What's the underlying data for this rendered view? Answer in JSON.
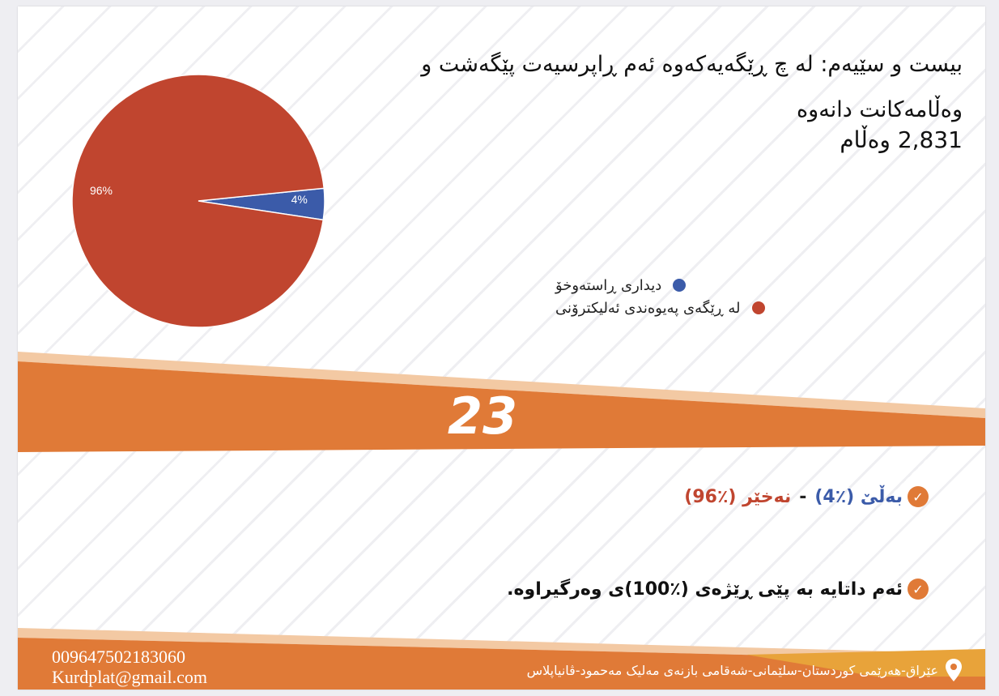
{
  "question": {
    "title": "بیست و سێیەم: لە چ ڕێگەیەکەوە ئەم ڕاپرسیەت پێگەشت و وەڵامەکانت دانەوە",
    "responses": "2,831 وەڵام"
  },
  "chart_data": {
    "type": "pie",
    "title": "",
    "slices": [
      {
        "label": "دیداری ڕاستەوخۆ",
        "value": 4,
        "display": "4%",
        "color": "#3b5ba9"
      },
      {
        "label": "لە ڕێگەی پەیوەندی ئەلیکترۆنی",
        "value": 96,
        "display": "96%",
        "color": "#c0452f"
      }
    ],
    "legend_position": "right"
  },
  "band": {
    "number": "23"
  },
  "summary": {
    "yes": "بەڵێ (٪4)",
    "dash": "-",
    "no": "نەخێر (٪96)",
    "note": "ئەم داتایە بە پێی ڕێژەی (٪100)ی وەرگیراوە."
  },
  "footer": {
    "phone": "009647502183060",
    "email": "Kurdplat@gmail.com",
    "address": "عێراق-هەرێمی کوردستان-سلێمانی-شەقامی بازنەی مەلیک مەحمود-ڤانیاپلاس"
  },
  "colors": {
    "orange": "#e07a37",
    "peach": "#f3c9a3",
    "blue": "#3b5ba9",
    "red": "#c0452f",
    "gold": "#e8a33a"
  }
}
